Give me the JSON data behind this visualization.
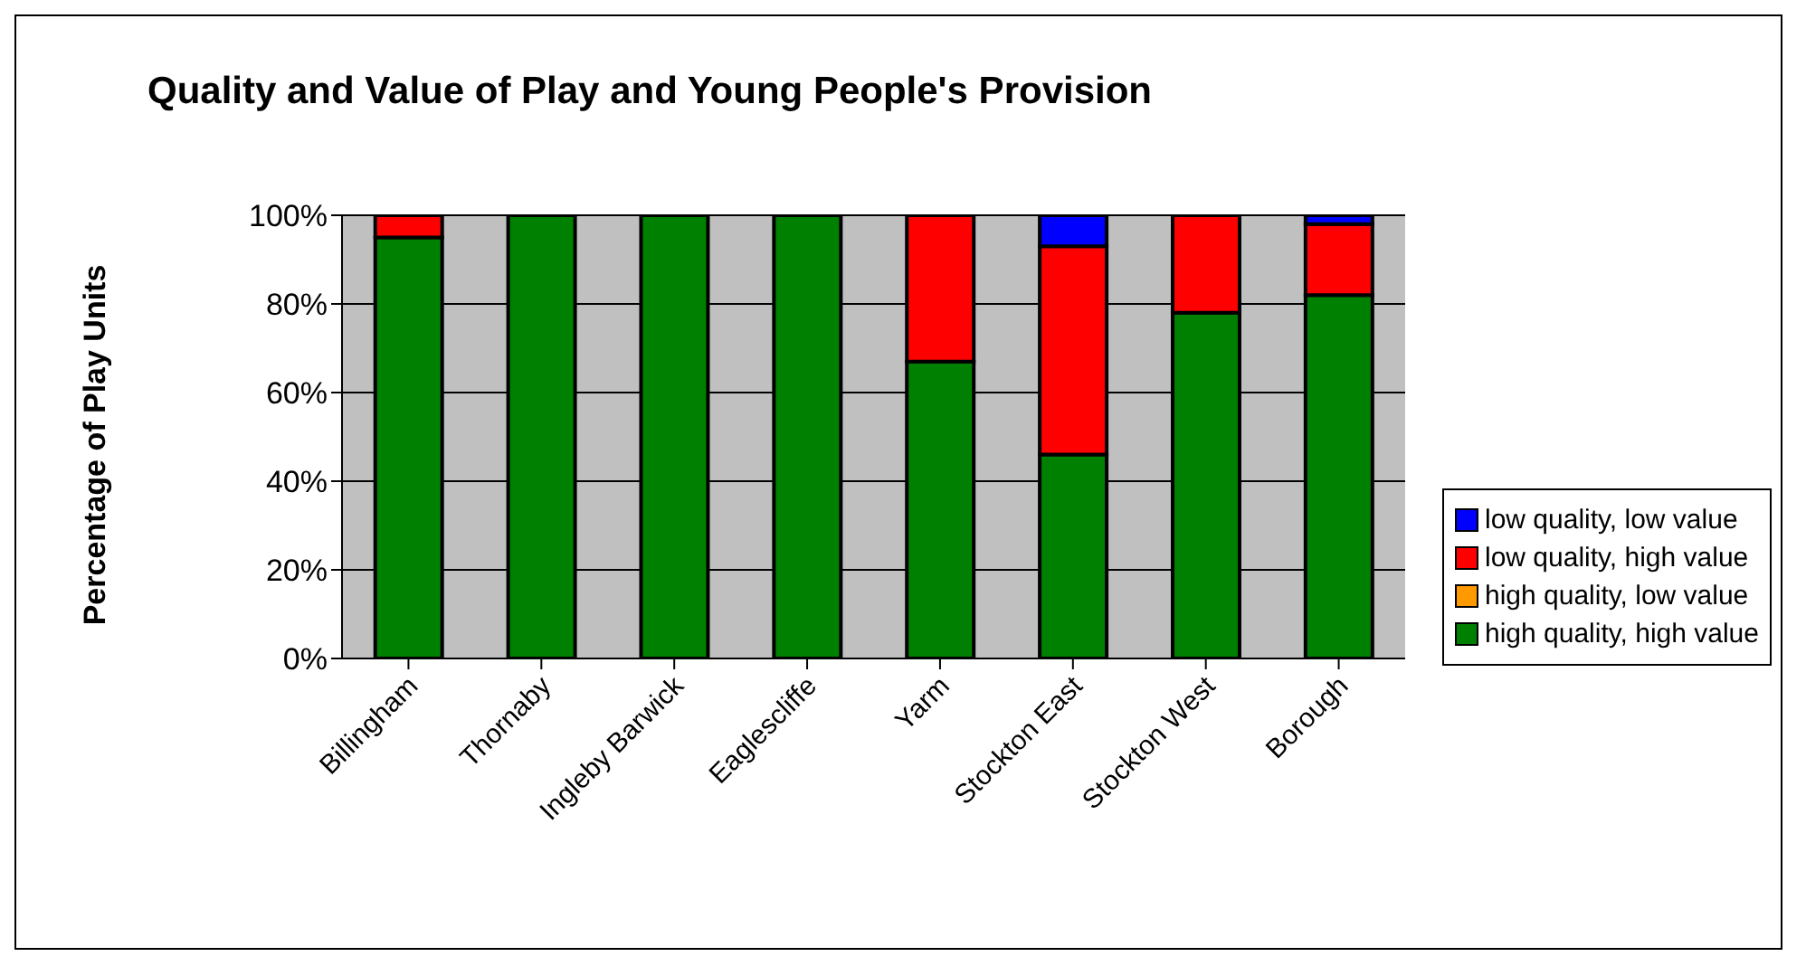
{
  "chart_data": {
    "type": "bar",
    "title": "Quality and Value of Play and Young People's Provision",
    "ylabel": "Percentage of Play Units",
    "categories": [
      "Billingham",
      "Thornaby",
      "Ingleby Barwick",
      "Eaglescliffe",
      "Yarm",
      "Stockton East",
      "Stockton West",
      "Borough"
    ],
    "stacked": true,
    "ylim": [
      0,
      100
    ],
    "yticks": [
      {
        "value": 0,
        "label": "0%"
      },
      {
        "value": 20,
        "label": "20%"
      },
      {
        "value": 40,
        "label": "40%"
      },
      {
        "value": 60,
        "label": "60%"
      },
      {
        "value": 80,
        "label": "80%"
      },
      {
        "value": 100,
        "label": "100%"
      }
    ],
    "grid": "y",
    "legend": "right",
    "series": [
      {
        "name": "high quality, high value",
        "color": "#008000",
        "values": [
          95,
          100,
          100,
          100,
          67,
          46,
          78,
          82
        ]
      },
      {
        "name": "high quality, low value",
        "color": "#ff9900",
        "values": [
          0,
          0,
          0,
          0,
          0,
          0,
          0,
          0
        ]
      },
      {
        "name": "low quality, high value",
        "color": "#ff0000",
        "values": [
          5,
          0,
          0,
          0,
          33,
          47,
          22,
          16
        ]
      },
      {
        "name": "low quality, low value",
        "color": "#0000ff",
        "values": [
          0,
          0,
          0,
          0,
          0,
          7,
          0,
          2
        ]
      }
    ]
  }
}
